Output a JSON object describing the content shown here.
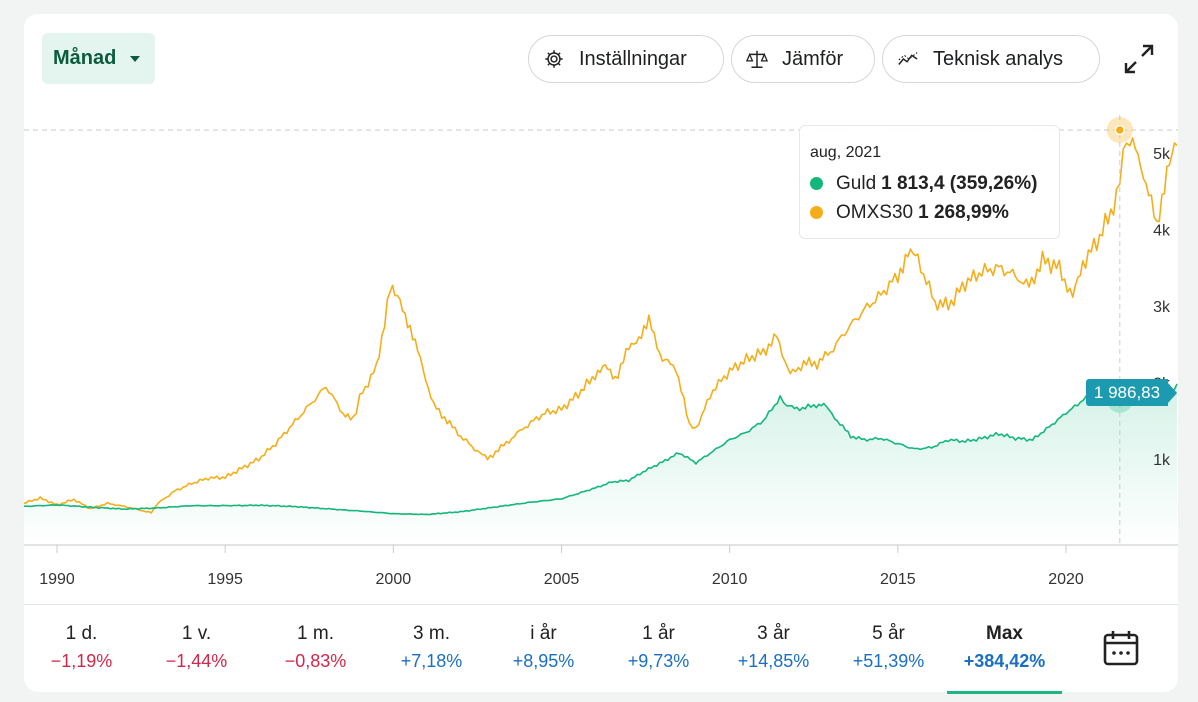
{
  "toolbar": {
    "period_label": "Månad",
    "settings_label": "Inställningar",
    "compare_label": "Jämför",
    "technical_label": "Teknisk analys"
  },
  "tooltip": {
    "date": "aug, 2021",
    "guld_name": "Guld",
    "guld_value": "1 813,4 (359,26%)",
    "omx_name": "OMXS30",
    "omx_value": "1 268,99%"
  },
  "price_tag": "1 986,83",
  "ranges": [
    {
      "label": "1 d.",
      "value": "−1,19%",
      "color": "#d1274b"
    },
    {
      "label": "1 v.",
      "value": "−1,44%",
      "color": "#d1274b"
    },
    {
      "label": "1 m.",
      "value": "−0,83%",
      "color": "#d1274b"
    },
    {
      "label": "3 m.",
      "value": "+7,18%",
      "color": "#1a6fc4"
    },
    {
      "label": "i år",
      "value": "+8,95%",
      "color": "#1a6fc4"
    },
    {
      "label": "1 år",
      "value": "+9,73%",
      "color": "#1a6fc4"
    },
    {
      "label": "3 år",
      "value": "+14,85%",
      "color": "#1a6fc4"
    },
    {
      "label": "5 år",
      "value": "+51,39%",
      "color": "#1a6fc4"
    },
    {
      "label": "Max",
      "value": "+384,42%",
      "color": "#1a6fc4",
      "active": true
    }
  ],
  "colors": {
    "guld": "#13b77b",
    "omx": "#f5ae1a",
    "accent": "#1fb583",
    "tag": "#1c9bb0"
  },
  "chart_data": {
    "type": "line",
    "x_ticks": [
      "1990",
      "1995",
      "2000",
      "2005",
      "2010",
      "2015",
      "2020"
    ],
    "y_ticks": [
      "1k",
      "2k",
      "3k",
      "4k",
      "5k"
    ],
    "xlim": [
      1989,
      2023.3
    ],
    "ylim": [
      0,
      5500
    ],
    "y_scale_note": "y values in OMXS30 index units (gold series plotted on same pixel scale)",
    "series": [
      {
        "name": "OMXS30",
        "color": "#f5ae1a",
        "x": [
          1989.0,
          1989.5,
          1990.0,
          1990.5,
          1991.0,
          1991.5,
          1992.0,
          1992.5,
          1992.8,
          1993.0,
          1993.5,
          1994.0,
          1994.5,
          1995.0,
          1995.5,
          1996.0,
          1996.5,
          1997.0,
          1997.5,
          1998.0,
          1998.5,
          1998.8,
          1999.0,
          1999.5,
          1999.9,
          2000.2,
          2000.5,
          2000.8,
          2001.2,
          2001.6,
          2002.0,
          2002.5,
          2002.8,
          2003.2,
          2003.6,
          2004.0,
          2004.5,
          2005.0,
          2005.5,
          2006.0,
          2006.3,
          2006.6,
          2007.0,
          2007.3,
          2007.6,
          2008.0,
          2008.4,
          2008.8,
          2009.0,
          2009.5,
          2010.0,
          2010.5,
          2011.0,
          2011.4,
          2011.8,
          2012.2,
          2012.6,
          2013.0,
          2013.5,
          2014.0,
          2014.5,
          2015.0,
          2015.3,
          2015.6,
          2016.1,
          2016.5,
          2017.0,
          2017.5,
          2018.0,
          2018.5,
          2018.9,
          2019.3,
          2019.8,
          2020.2,
          2020.5,
          2021.0,
          2021.5,
          2021.7,
          2021.9,
          2022.3,
          2022.7,
          2023.0,
          2023.3
        ],
        "values": [
          420,
          490,
          400,
          470,
          350,
          420,
          380,
          330,
          300,
          420,
          580,
          680,
          750,
          760,
          880,
          1000,
          1200,
          1450,
          1700,
          1950,
          1600,
          1500,
          1800,
          2200,
          3200,
          3100,
          2700,
          2300,
          1700,
          1500,
          1300,
          1100,
          1000,
          1150,
          1300,
          1450,
          1600,
          1650,
          1850,
          2100,
          2200,
          2050,
          2450,
          2600,
          2800,
          2300,
          2200,
          1450,
          1400,
          1900,
          2150,
          2300,
          2400,
          2600,
          2100,
          2250,
          2250,
          2400,
          2700,
          2950,
          3150,
          3400,
          3700,
          3600,
          3050,
          3000,
          3300,
          3450,
          3500,
          3400,
          3250,
          3600,
          3500,
          3100,
          3550,
          3900,
          4400,
          5000,
          5200,
          4750,
          4050,
          4800,
          5100
        ]
      },
      {
        "name": "Guld",
        "color": "#13b77b",
        "x": [
          1989.0,
          1990.0,
          1991.0,
          1992.0,
          1993.0,
          1994.0,
          1995.0,
          1996.0,
          1997.0,
          1998.0,
          1999.0,
          2000.0,
          2001.0,
          2002.0,
          2003.0,
          2004.0,
          2005.0,
          2006.0,
          2006.5,
          2007.0,
          2007.5,
          2008.0,
          2008.5,
          2009.0,
          2009.5,
          2010.0,
          2010.5,
          2011.0,
          2011.5,
          2011.7,
          2012.0,
          2012.5,
          2012.8,
          2013.2,
          2013.6,
          2014.0,
          2014.5,
          2015.0,
          2015.5,
          2016.0,
          2016.5,
          2017.0,
          2017.5,
          2018.0,
          2018.5,
          2019.0,
          2019.5,
          2020.0,
          2020.6,
          2021.0,
          2021.6,
          2022.0,
          2022.5,
          2023.0,
          2023.3
        ],
        "values": [
          380,
          400,
          370,
          345,
          360,
          390,
          390,
          395,
          380,
          350,
          320,
          285,
          275,
          310,
          370,
          430,
          480,
          620,
          700,
          720,
          850,
          960,
          1080,
          950,
          1100,
          1250,
          1350,
          1500,
          1800,
          1700,
          1650,
          1700,
          1720,
          1500,
          1300,
          1250,
          1270,
          1200,
          1130,
          1150,
          1250,
          1230,
          1270,
          1330,
          1270,
          1250,
          1420,
          1600,
          1800,
          1900,
          1800,
          1900,
          1760,
          1750,
          1980
        ]
      }
    ],
    "tooltip_x": 2021.6,
    "last_value_label": "1 986,83",
    "grid": false,
    "legend": "tooltip"
  }
}
